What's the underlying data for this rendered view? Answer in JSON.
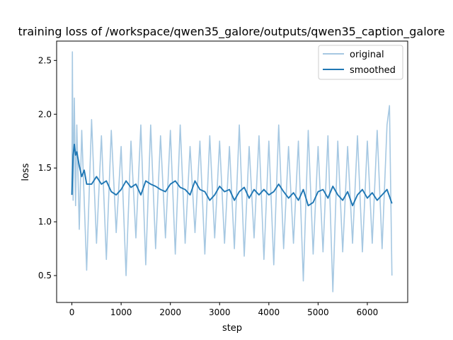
{
  "chart_data": {
    "type": "line",
    "title": "training loss of /workspace/qwen35_galore/outputs/qwen35_caption_galore",
    "xlabel": "step",
    "ylabel": "loss",
    "xlim": [
      -310,
      6820
    ],
    "ylim": [
      0.25,
      2.68
    ],
    "x_ticks": [
      0,
      1000,
      2000,
      3000,
      4000,
      5000,
      6000
    ],
    "x_tick_labels": [
      "0",
      "1000",
      "2000",
      "3000",
      "4000",
      "5000",
      "6000"
    ],
    "y_ticks": [
      0.5,
      1.0,
      1.5,
      2.0,
      2.5
    ],
    "y_tick_labels": [
      "0.5",
      "1.0",
      "1.5",
      "2.0",
      "2.5"
    ],
    "grid": false,
    "legend_position": "top-right",
    "series": [
      {
        "name": "original",
        "color": "#a6c8e2",
        "x": [
          0,
          10,
          25,
          50,
          75,
          100,
          150,
          200,
          300,
          400,
          500,
          600,
          700,
          800,
          900,
          1000,
          1100,
          1200,
          1300,
          1400,
          1500,
          1600,
          1700,
          1800,
          1900,
          2000,
          2100,
          2200,
          2300,
          2400,
          2500,
          2600,
          2700,
          2800,
          2900,
          3000,
          3100,
          3200,
          3300,
          3400,
          3500,
          3600,
          3700,
          3800,
          3900,
          4000,
          4100,
          4200,
          4300,
          4400,
          4500,
          4600,
          4700,
          4800,
          4900,
          5000,
          5100,
          5200,
          5300,
          5400,
          5500,
          5600,
          5700,
          5800,
          5900,
          6000,
          6100,
          6200,
          6300,
          6400,
          6450,
          6500
        ],
        "y": [
          1.25,
          2.58,
          1.2,
          2.15,
          1.15,
          1.9,
          0.93,
          1.85,
          0.55,
          1.95,
          0.8,
          1.8,
          0.65,
          1.85,
          0.9,
          1.7,
          0.5,
          1.75,
          0.85,
          1.9,
          0.6,
          1.9,
          0.75,
          1.8,
          0.85,
          1.85,
          0.7,
          1.9,
          0.8,
          1.7,
          0.9,
          1.75,
          0.7,
          1.8,
          0.85,
          1.75,
          0.8,
          1.7,
          0.75,
          1.9,
          0.68,
          1.7,
          0.85,
          1.8,
          0.65,
          1.75,
          0.6,
          1.9,
          0.75,
          1.7,
          0.8,
          1.75,
          0.45,
          1.85,
          0.7,
          1.7,
          0.72,
          1.8,
          0.35,
          1.75,
          0.72,
          1.7,
          0.8,
          1.8,
          0.72,
          1.75,
          0.8,
          1.85,
          0.75,
          1.9,
          2.08,
          0.5
        ]
      },
      {
        "name": "smoothed",
        "color": "#1f77b4",
        "x": [
          0,
          25,
          50,
          75,
          100,
          150,
          200,
          250,
          300,
          400,
          500,
          600,
          700,
          800,
          900,
          1000,
          1100,
          1200,
          1300,
          1400,
          1500,
          1600,
          1700,
          1800,
          1900,
          2000,
          2100,
          2200,
          2300,
          2400,
          2500,
          2600,
          2700,
          2800,
          2900,
          3000,
          3100,
          3200,
          3300,
          3400,
          3500,
          3600,
          3700,
          3800,
          3900,
          4000,
          4100,
          4200,
          4300,
          4400,
          4500,
          4600,
          4700,
          4800,
          4900,
          5000,
          5100,
          5200,
          5300,
          5400,
          5500,
          5600,
          5700,
          5800,
          5900,
          6000,
          6100,
          6200,
          6300,
          6400,
          6500
        ],
        "y": [
          1.25,
          1.62,
          1.72,
          1.62,
          1.65,
          1.52,
          1.42,
          1.48,
          1.35,
          1.35,
          1.42,
          1.35,
          1.38,
          1.28,
          1.25,
          1.3,
          1.38,
          1.32,
          1.35,
          1.25,
          1.38,
          1.35,
          1.33,
          1.3,
          1.28,
          1.35,
          1.38,
          1.32,
          1.3,
          1.25,
          1.38,
          1.3,
          1.28,
          1.2,
          1.25,
          1.33,
          1.28,
          1.3,
          1.2,
          1.28,
          1.32,
          1.22,
          1.3,
          1.25,
          1.3,
          1.25,
          1.28,
          1.35,
          1.28,
          1.22,
          1.27,
          1.2,
          1.3,
          1.15,
          1.18,
          1.28,
          1.3,
          1.22,
          1.33,
          1.25,
          1.2,
          1.28,
          1.15,
          1.25,
          1.3,
          1.22,
          1.27,
          1.2,
          1.25,
          1.3,
          1.17
        ]
      }
    ]
  }
}
